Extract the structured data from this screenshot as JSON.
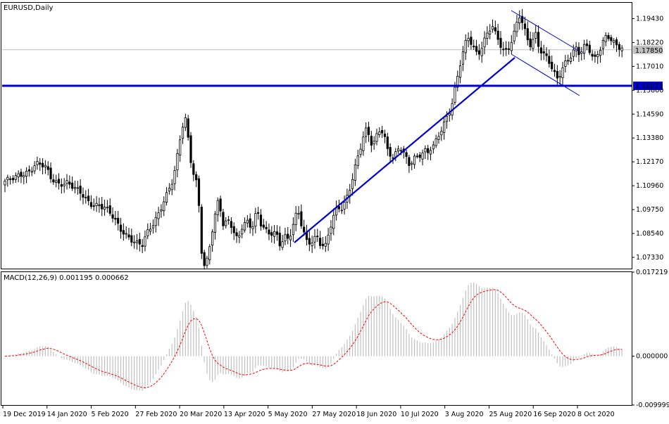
{
  "window": {
    "title": "EURUSD,Daily"
  },
  "colors": {
    "background": "#ffffff",
    "candle": "#000000",
    "trendline": "#0000cc",
    "support": "#0000cc",
    "bid_line": "#c0c0c0",
    "macd_hist": "#c0c0c0",
    "signal": "#ff0000"
  },
  "chart_data": [
    {
      "type": "candlestick",
      "title": "EURUSD,Daily",
      "y_ticks": [
        "1.19430",
        "1.18220",
        "1.17010",
        "1.15800",
        "1.14590",
        "1.13380",
        "1.12170",
        "1.10960",
        "1.09750",
        "1.08540",
        "1.07330"
      ],
      "ylim": [
        1.0676,
        1.2023
      ],
      "x_labels": [
        "19 Dec 2019",
        "14 Jan 2020",
        "5 Feb 2020",
        "27 Feb 2020",
        "20 Mar 2020",
        "13 Apr 2020",
        "5 May 2020",
        "27 May 2020",
        "18 Jun 2020",
        "10 Jul 2020",
        "3 Aug 2020",
        "25 Aug 2020",
        "16 Sep 2020",
        "8 Oct 2020"
      ],
      "price_labels": {
        "bid": "1.17850",
        "support": "1.16023"
      },
      "bid_price": 1.1785,
      "support_price": 1.16023,
      "grid": false,
      "close_path": [
        [
          0,
          1.112
        ],
        [
          6,
          1.113
        ],
        [
          10,
          1.115
        ],
        [
          16,
          1.1175
        ],
        [
          20,
          1.121
        ],
        [
          26,
          1.119
        ],
        [
          30,
          1.113
        ],
        [
          35,
          1.111
        ],
        [
          40,
          1.1115
        ],
        [
          45,
          1.108
        ],
        [
          50,
          1.105
        ],
        [
          55,
          1.101
        ],
        [
          60,
          1.1
        ],
        [
          65,
          1.098
        ],
        [
          70,
          1.0935
        ],
        [
          75,
          1.088
        ],
        [
          80,
          1.084
        ],
        [
          85,
          1.08
        ],
        [
          89,
          1.079
        ],
        [
          93,
          1.087
        ],
        [
          97,
          1.092
        ],
        [
          101,
          1.0985
        ],
        [
          105,
          1.105
        ],
        [
          109,
          1.112
        ],
        [
          111,
          1.12
        ],
        [
          113,
          1.131
        ],
        [
          115,
          1.14
        ],
        [
          117,
          1.144
        ],
        [
          119,
          1.133
        ],
        [
          121,
          1.12
        ],
        [
          123,
          1.114
        ],
        [
          125,
          1.109
        ],
        [
          126,
          1.096
        ],
        [
          127,
          1.082
        ],
        [
          128,
          1.07
        ],
        [
          130,
          1.067
        ],
        [
          132,
          1.075
        ],
        [
          134,
          1.085
        ],
        [
          136,
          1.094
        ],
        [
          138,
          1.102
        ],
        [
          140,
          1.098
        ],
        [
          142,
          1.088
        ],
        [
          144,
          1.093
        ],
        [
          146,
          1.091
        ],
        [
          148,
          1.086
        ],
        [
          150,
          1.082
        ],
        [
          152,
          1.084
        ],
        [
          154,
          1.089
        ],
        [
          156,
          1.091
        ],
        [
          158,
          1.092
        ],
        [
          160,
          1.088
        ],
        [
          162,
          1.095
        ],
        [
          164,
          1.096
        ],
        [
          166,
          1.09
        ],
        [
          168,
          1.088
        ],
        [
          170,
          1.085
        ],
        [
          172,
          1.084
        ],
        [
          174,
          1.086
        ],
        [
          176,
          1.085
        ],
        [
          178,
          1.08
        ],
        [
          180,
          1.083
        ],
        [
          182,
          1.085
        ],
        [
          184,
          1.082
        ],
        [
          186,
          1.088
        ],
        [
          188,
          1.093
        ],
        [
          190,
          1.096
        ],
        [
          192,
          1.09
        ],
        [
          194,
          1.085
        ],
        [
          196,
          1.08
        ],
        [
          198,
          1.081
        ],
        [
          200,
          1.083
        ],
        [
          202,
          1.085
        ],
        [
          204,
          1.081
        ],
        [
          206,
          1.08
        ],
        [
          208,
          1.079
        ],
        [
          210,
          1.085
        ],
        [
          212,
          1.091
        ],
        [
          214,
          1.096
        ],
        [
          216,
          1.098
        ],
        [
          218,
          1.098
        ],
        [
          220,
          1.101
        ],
        [
          222,
          1.105
        ],
        [
          224,
          1.11
        ],
        [
          226,
          1.116
        ],
        [
          228,
          1.122
        ],
        [
          230,
          1.127
        ],
        [
          232,
          1.133
        ],
        [
          234,
          1.137
        ],
        [
          236,
          1.135
        ],
        [
          238,
          1.13
        ],
        [
          240,
          1.133
        ],
        [
          242,
          1.138
        ],
        [
          244,
          1.139
        ],
        [
          246,
          1.135
        ],
        [
          248,
          1.128
        ],
        [
          250,
          1.125
        ],
        [
          252,
          1.123
        ],
        [
          254,
          1.126
        ],
        [
          256,
          1.129
        ],
        [
          258,
          1.127
        ],
        [
          260,
          1.124
        ],
        [
          262,
          1.121
        ],
        [
          264,
          1.123
        ],
        [
          266,
          1.125
        ],
        [
          268,
          1.124
        ],
        [
          270,
          1.126
        ],
        [
          272,
          1.127
        ],
        [
          274,
          1.125
        ],
        [
          276,
          1.128
        ],
        [
          278,
          1.13
        ],
        [
          280,
          1.133
        ],
        [
          282,
          1.137
        ],
        [
          284,
          1.141
        ],
        [
          286,
          1.144
        ],
        [
          288,
          1.147
        ],
        [
          290,
          1.152
        ],
        [
          292,
          1.159
        ],
        [
          294,
          1.166
        ],
        [
          296,
          1.174
        ],
        [
          298,
          1.18
        ],
        [
          300,
          1.185
        ],
        [
          302,
          1.183
        ],
        [
          304,
          1.18
        ],
        [
          306,
          1.177
        ],
        [
          308,
          1.178
        ],
        [
          310,
          1.182
        ],
        [
          312,
          1.185
        ],
        [
          314,
          1.188
        ],
        [
          316,
          1.19
        ],
        [
          318,
          1.186
        ],
        [
          320,
          1.183
        ],
        [
          322,
          1.18
        ],
        [
          324,
          1.178
        ],
        [
          326,
          1.179
        ],
        [
          328,
          1.183
        ],
        [
          330,
          1.187
        ],
        [
          332,
          1.192
        ],
        [
          334,
          1.196
        ],
        [
          336,
          1.19
        ],
        [
          338,
          1.185
        ],
        [
          340,
          1.18
        ],
        [
          342,
          1.183
        ],
        [
          344,
          1.187
        ],
        [
          346,
          1.181
        ],
        [
          348,
          1.178
        ],
        [
          350,
          1.176
        ],
        [
          352,
          1.174
        ],
        [
          354,
          1.17
        ],
        [
          356,
          1.166
        ],
        [
          358,
          1.163
        ],
        [
          360,
          1.166
        ],
        [
          362,
          1.17
        ],
        [
          364,
          1.173
        ],
        [
          366,
          1.175
        ],
        [
          368,
          1.178
        ],
        [
          370,
          1.18
        ],
        [
          372,
          1.177
        ],
        [
          374,
          1.178
        ],
        [
          376,
          1.18
        ],
        [
          378,
          1.179
        ],
        [
          380,
          1.176
        ],
        [
          382,
          1.173
        ],
        [
          384,
          1.176
        ],
        [
          386,
          1.18
        ],
        [
          388,
          1.184
        ],
        [
          390,
          1.186
        ],
        [
          392,
          1.185
        ],
        [
          394,
          1.183
        ],
        [
          396,
          1.18
        ],
        [
          398,
          1.179
        ],
        [
          400,
          1.179
        ]
      ]
    },
    {
      "type": "bar",
      "title": "MACD(12,26,9) 0.001195 0.000662",
      "y_ticks": [
        "0.017219",
        "0.000000",
        "-0.009999"
      ],
      "ylim": [
        -0.01,
        0.01722
      ],
      "series": [
        {
          "name": "MACD",
          "kind": "histogram"
        },
        {
          "name": "Signal",
          "kind": "line"
        }
      ]
    }
  ]
}
